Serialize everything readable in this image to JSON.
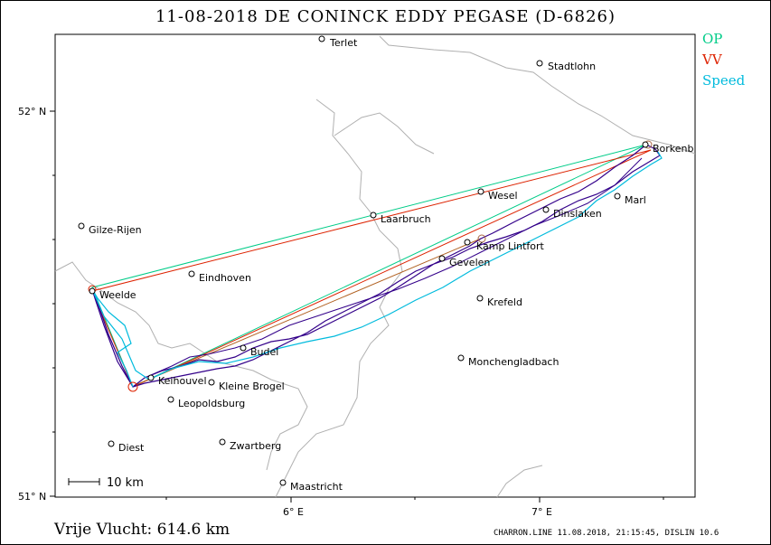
{
  "title": "11-08-2018    DE CONINCK EDDY    PEGASE (D-6826)",
  "legend": [
    {
      "label": "OP",
      "color": "#00cc88"
    },
    {
      "label": "VV",
      "color": "#dd2200"
    },
    {
      "label": "Speed",
      "color": "#00bbdd"
    }
  ],
  "axes": {
    "lat_labels": [
      "52° N",
      "51° N"
    ],
    "lon_labels": [
      "6° E",
      "7° E"
    ]
  },
  "scale_bar": "10  km",
  "towns": [
    {
      "name": "Terlet"
    },
    {
      "name": "Stadtlohn"
    },
    {
      "name": "Borkenb"
    },
    {
      "name": "Wesel"
    },
    {
      "name": "Marl"
    },
    {
      "name": "Dinslaken"
    },
    {
      "name": "Laarbruch"
    },
    {
      "name": "Gilze-Rijen"
    },
    {
      "name": "Kamp Lintfort"
    },
    {
      "name": "Gevelen"
    },
    {
      "name": "Eindhoven"
    },
    {
      "name": "Weelde"
    },
    {
      "name": "Krefeld"
    },
    {
      "name": "Budel"
    },
    {
      "name": "Monchengladbach"
    },
    {
      "name": "Keihouvel"
    },
    {
      "name": "Kleine Brogel"
    },
    {
      "name": "Leopoldsburg"
    },
    {
      "name": "Diest"
    },
    {
      "name": "Zwartberg"
    },
    {
      "name": "Maastricht"
    }
  ],
  "footer": {
    "distance": "Vrije Vlucht:  614.6 km",
    "info": "CHARRON.LINE 11.08.2018, 21:15:45, DISLIN 10.6"
  }
}
